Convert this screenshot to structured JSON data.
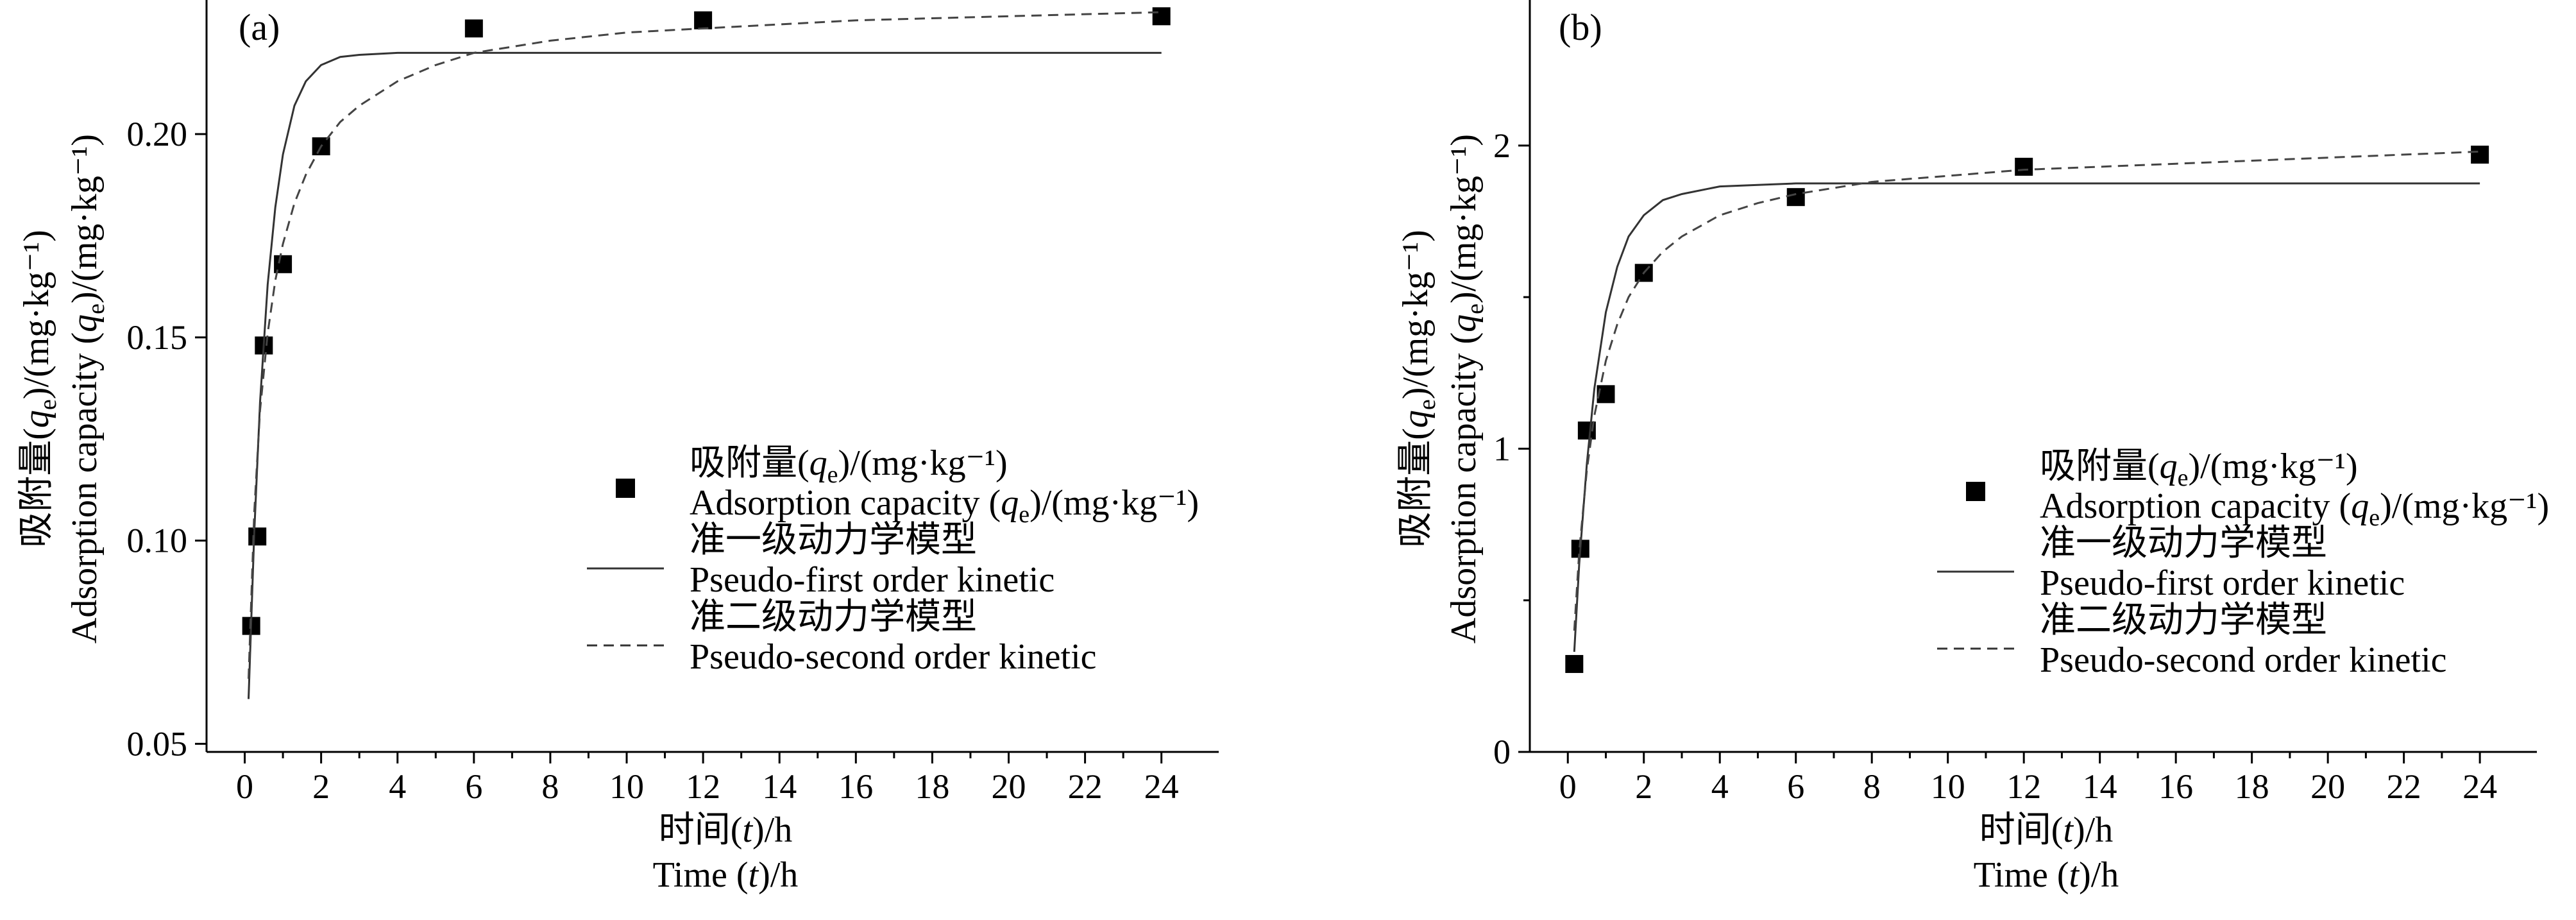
{
  "chart_data": [
    {
      "type": "scatter",
      "panel_label": "(a)",
      "x": [
        0.17,
        0.33,
        0.5,
        1,
        2,
        6,
        12,
        24
      ],
      "series": [
        {
          "name_zh": "吸附量(qe)/(mg·kg⁻¹)",
          "name_en": "Adsorption capacity (qe)/(mg·kg⁻¹)",
          "kind": "points",
          "values": [
            0.079,
            0.101,
            0.148,
            0.168,
            0.197,
            0.226,
            0.228,
            0.229
          ]
        },
        {
          "name_zh": "准一级动力学模型",
          "name_en": "Pseudo-first order kinetic",
          "kind": "line",
          "style": "solid",
          "x": [
            0.1,
            0.25,
            0.4,
            0.6,
            0.8,
            1.0,
            1.3,
            1.6,
            2.0,
            2.5,
            3.0,
            4.0,
            6.0,
            10.0,
            16.0,
            24.0
          ],
          "values": [
            0.061,
            0.102,
            0.134,
            0.163,
            0.182,
            0.195,
            0.207,
            0.213,
            0.217,
            0.219,
            0.2195,
            0.22,
            0.22,
            0.22,
            0.22,
            0.22
          ]
        },
        {
          "name_zh": "准二级动力学模型",
          "name_en": "Pseudo-second order kinetic",
          "kind": "line",
          "style": "dashed",
          "x": [
            0.1,
            0.25,
            0.4,
            0.6,
            0.8,
            1.0,
            1.3,
            1.6,
            2.0,
            2.5,
            3.0,
            4.0,
            5.0,
            6.0,
            8.0,
            10.0,
            12.0,
            16.0,
            20.0,
            24.0
          ],
          "values": [
            0.066,
            0.107,
            0.132,
            0.151,
            0.164,
            0.173,
            0.183,
            0.19,
            0.197,
            0.203,
            0.207,
            0.213,
            0.217,
            0.22,
            0.223,
            0.225,
            0.226,
            0.228,
            0.229,
            0.23
          ]
        }
      ],
      "xticks": [
        0,
        2,
        4,
        6,
        8,
        10,
        12,
        14,
        16,
        18,
        20,
        22,
        24
      ],
      "yticks": [
        0.05,
        0.1,
        0.15,
        0.2
      ],
      "ytick_labels": [
        "0.05",
        "0.10",
        "0.15",
        "0.20"
      ],
      "xlim": [
        -1,
        25.5
      ],
      "ylim": [
        0.048,
        0.233
      ],
      "xlabel_zh": "时间(t)/h",
      "xlabel_en": "Time (t)/h",
      "ylabel_zh": "吸附量(qe)/(mg·kg⁻¹)",
      "ylabel_en": "Adsorption capacity (qe)/(mg·kg⁻¹)",
      "grid": false,
      "legend_position": "center-right"
    },
    {
      "type": "scatter",
      "panel_label": "(b)",
      "x": [
        0.17,
        0.33,
        0.5,
        1,
        2,
        6,
        12,
        24
      ],
      "series": [
        {
          "name_zh": "吸附量(qe)/(mg·kg⁻¹)",
          "name_en": "Adsorption capacity (qe)/(mg·kg⁻¹)",
          "kind": "points",
          "values": [
            0.29,
            0.67,
            1.06,
            1.18,
            1.58,
            1.83,
            1.93,
            1.97
          ]
        },
        {
          "name_zh": "准一级动力学模型",
          "name_en": "Pseudo-first order kinetic",
          "kind": "line",
          "style": "solid",
          "x": [
            0.17,
            0.3,
            0.5,
            0.7,
            1.0,
            1.3,
            1.6,
            2.0,
            2.5,
            3.0,
            4.0,
            5.0,
            6.0,
            10.0,
            16.0,
            24.0
          ],
          "values": [
            0.33,
            0.62,
            0.95,
            1.2,
            1.45,
            1.6,
            1.7,
            1.77,
            1.82,
            1.84,
            1.865,
            1.87,
            1.875,
            1.875,
            1.875,
            1.875
          ]
        },
        {
          "name_zh": "准二级动力学模型",
          "name_en": "Pseudo-second order kinetic",
          "kind": "line",
          "style": "dashed",
          "x": [
            0.17,
            0.3,
            0.5,
            0.7,
            1.0,
            1.3,
            1.6,
            2.0,
            2.5,
            3.0,
            4.0,
            5.0,
            6.0,
            8.0,
            10.0,
            12.0,
            16.0,
            20.0,
            24.0
          ],
          "values": [
            0.4,
            0.66,
            0.93,
            1.11,
            1.29,
            1.41,
            1.5,
            1.58,
            1.65,
            1.7,
            1.77,
            1.81,
            1.84,
            1.88,
            1.9,
            1.92,
            1.94,
            1.96,
            1.98
          ]
        }
      ],
      "xticks": [
        0,
        2,
        4,
        6,
        8,
        10,
        12,
        14,
        16,
        18,
        20,
        22,
        24
      ],
      "yticks": [
        0,
        1,
        2
      ],
      "ytick_labels": [
        "0",
        "1",
        "2"
      ],
      "minor_yticks": [
        0.5,
        1.5
      ],
      "xlim": [
        -1,
        25.5
      ],
      "ylim": [
        0,
        2.48
      ],
      "xlabel_zh": "时间(t)/h",
      "xlabel_en": "Time (t)/h",
      "ylabel_zh": "吸附量(qe)/(mg·kg⁻¹)",
      "ylabel_en": "Adsorption capacity (qe)/(mg·kg⁻¹)",
      "grid": false,
      "legend_position": "center-right"
    }
  ]
}
